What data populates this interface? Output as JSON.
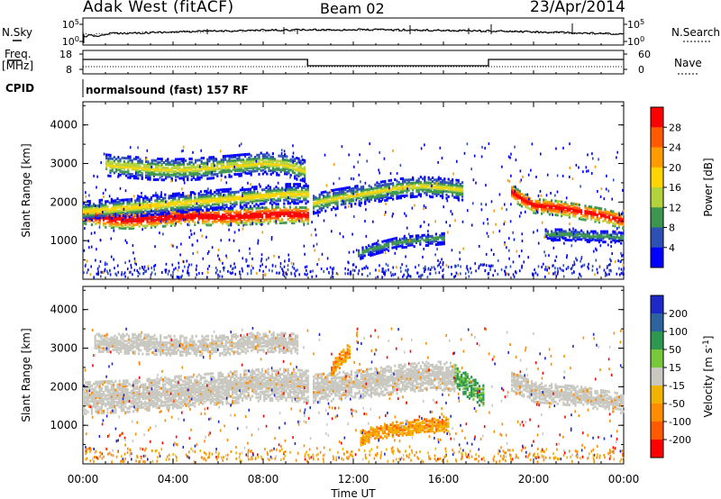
{
  "header": {
    "station": "Adak West (fitACF)",
    "beam": "Beam 02",
    "date": "23/Apr/2014"
  },
  "strip_labels": {
    "nsky": "N.Sky",
    "nsearch": "N.Search",
    "freq": "Freq.",
    "freq_unit": "[MHz]",
    "nave": "Nave",
    "cpid": "CPID",
    "program": "normalsound (fast) 157 RF"
  },
  "noise_panel": {
    "left_ticks": [
      "10^5",
      "10^0"
    ],
    "right_ticks": [
      "10^5",
      "10^0"
    ]
  },
  "freq_panel": {
    "left_ticks": [
      "18",
      "8"
    ],
    "right_ticks": [
      "60",
      "0"
    ]
  },
  "power_colorbar": {
    "label": "Power [dB]",
    "ticks": [
      "28",
      "24",
      "20",
      "16",
      "12",
      "8",
      "4"
    ],
    "colors": [
      "#ff0000",
      "#ff5a00",
      "#ff9a00",
      "#ffd400",
      "#b4d23c",
      "#3c9650",
      "#2d50b4",
      "#0000ff"
    ]
  },
  "velocity_colorbar": {
    "label": "Velocity [m s^-1]",
    "ticks": [
      "200",
      "100",
      "50",
      "15",
      "-15",
      "-50",
      "-100",
      "-200"
    ],
    "colors": [
      "#1e28c8",
      "#2d64a0",
      "#2d9650",
      "#78c83c",
      "#c8c8c0",
      "#f0b400",
      "#ff8c00",
      "#ff5a00",
      "#ff0000"
    ]
  },
  "chart_data": [
    {
      "type": "heatmap",
      "panel": "power",
      "ylabel": "Slant Range [km]",
      "ylim": [
        0,
        4600
      ],
      "yticks": [
        "4000",
        "3000",
        "2000",
        "1000"
      ],
      "xlim_hours": [
        0,
        24
      ],
      "xticks": [
        "00:00",
        "04:00",
        "08:00",
        "12:00",
        "16:00",
        "20:00",
        "00:00"
      ],
      "bands": [
        {
          "x": [
            0.0,
            1.0,
            2.0,
            3.0,
            4.0,
            5.0,
            6.0,
            7.0,
            8.0,
            9.0,
            10.0
          ],
          "y": [
            1700,
            1600,
            1570,
            1600,
            1650,
            1670,
            1650,
            1670,
            1700,
            1720,
            1700
          ],
          "width": 220,
          "level": "high"
        },
        {
          "x": [
            0.0,
            1.0,
            2.0,
            3.0,
            4.0,
            5.0,
            6.0,
            7.0,
            8.0,
            9.0,
            10.0
          ],
          "y": [
            1800,
            1850,
            1900,
            1950,
            2000,
            2050,
            2100,
            2150,
            2200,
            2250,
            2250
          ],
          "width": 250,
          "level": "mid"
        },
        {
          "x": [
            1.0,
            2.0,
            3.0,
            4.0,
            5.0,
            6.0,
            7.0,
            8.0,
            9.0,
            9.8
          ],
          "y": [
            3000,
            2950,
            2900,
            2880,
            2900,
            2950,
            3000,
            3050,
            3000,
            2850
          ],
          "width": 280,
          "level": "mid"
        },
        {
          "x": [
            10.2,
            11.0,
            12.0,
            13.0,
            14.0,
            15.0,
            16.0,
            16.8
          ],
          "y": [
            2000,
            2100,
            2200,
            2300,
            2400,
            2450,
            2400,
            2350
          ],
          "width": 260,
          "level": "mid"
        },
        {
          "x": [
            19.0,
            19.5,
            20.0,
            21.0,
            22.0,
            23.0,
            24.0
          ],
          "y": [
            2300,
            2100,
            1950,
            1900,
            1800,
            1700,
            1550
          ],
          "width": 200,
          "level": "high"
        },
        {
          "x": [
            20.5,
            21.5,
            22.5,
            23.5,
            24.0
          ],
          "y": [
            1200,
            1200,
            1150,
            1150,
            1100
          ],
          "width": 150,
          "level": "low"
        },
        {
          "x": [
            12.2,
            13.0,
            14.0,
            15.0,
            16.0
          ],
          "y": [
            700,
            850,
            1000,
            1050,
            1100
          ],
          "width": 150,
          "level": "low"
        }
      ]
    },
    {
      "type": "heatmap",
      "panel": "velocity",
      "ylabel": "Slant Range [km]",
      "ylim": [
        0,
        4600
      ],
      "yticks": [
        "4000",
        "3000",
        "2000",
        "1000"
      ],
      "xlabel": "Time UT",
      "xlim_hours": [
        0,
        24
      ],
      "xticks": [
        "00:00",
        "04:00",
        "08:00",
        "12:00",
        "16:00",
        "20:00",
        "00:00"
      ],
      "bands": [
        {
          "x": [
            0.0,
            1.0,
            2.0,
            3.0,
            4.0,
            5.0,
            6.0,
            7.0,
            8.0,
            9.0,
            10.0
          ],
          "y": [
            1750,
            1780,
            1800,
            1850,
            1900,
            1950,
            2000,
            2050,
            2100,
            2100,
            2050
          ],
          "width": 420,
          "level": "ground"
        },
        {
          "x": [
            0.5,
            2.0,
            4.0,
            6.0,
            8.0,
            9.5
          ],
          "y": [
            3150,
            3150,
            3100,
            3100,
            3200,
            3150
          ],
          "width": 250,
          "level": "ground"
        },
        {
          "x": [
            10.2,
            12.0,
            14.0,
            15.5,
            16.5
          ],
          "y": [
            2000,
            2100,
            2250,
            2350,
            2300
          ],
          "width": 380,
          "level": "ground"
        },
        {
          "x": [
            16.5,
            17.2,
            17.8
          ],
          "y": [
            2300,
            2000,
            1750
          ],
          "width": 300,
          "level": "slow-pos"
        },
        {
          "x": [
            19.0,
            20.0,
            21.0,
            22.0,
            23.0,
            24.0
          ],
          "y": [
            2200,
            1900,
            1850,
            1800,
            1700,
            1600
          ],
          "width": 260,
          "level": "ground"
        },
        {
          "x": [
            12.3,
            13.0,
            14.0,
            15.0,
            16.2
          ],
          "y": [
            700,
            850,
            950,
            1000,
            1050
          ],
          "width": 180,
          "level": "neg"
        },
        {
          "x": [
            11.0,
            11.8
          ],
          "y": [
            2500,
            3000
          ],
          "width": 200,
          "level": "neg"
        }
      ]
    }
  ]
}
